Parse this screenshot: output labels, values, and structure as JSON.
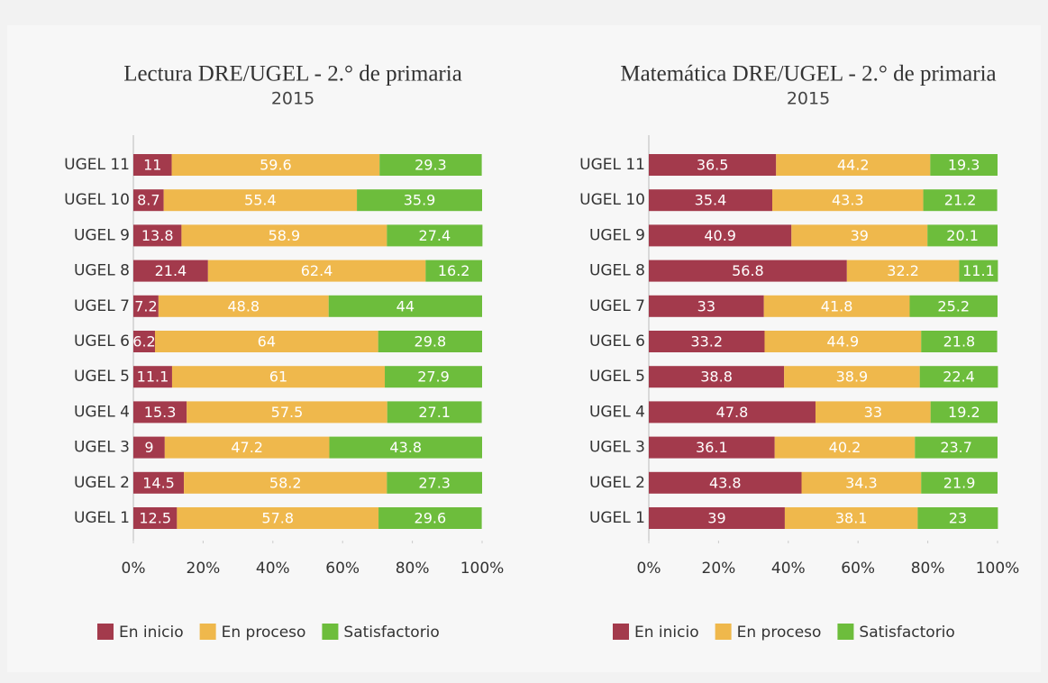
{
  "chart_data": [
    {
      "type": "stacked-barh",
      "title": "Lectura DRE/UGEL - 2.° de primaria",
      "subtitle": "2015",
      "categories": [
        "UGEL 11",
        "UGEL 10",
        "UGEL 9",
        "UGEL 8",
        "UGEL 7",
        "UGEL 6",
        "UGEL 5",
        "UGEL 4",
        "UGEL 3",
        "UGEL 2",
        "UGEL 1"
      ],
      "series": [
        {
          "name": "En inicio",
          "color": "#a33a4c",
          "values": [
            11,
            8.7,
            13.8,
            21.4,
            7.2,
            6.2,
            11.1,
            15.3,
            9,
            14.5,
            12.5
          ]
        },
        {
          "name": "En proceso",
          "color": "#efb84c",
          "values": [
            59.6,
            55.4,
            58.9,
            62.4,
            48.8,
            64,
            61,
            57.5,
            47.2,
            58.2,
            57.8
          ]
        },
        {
          "name": "Satisfactorio",
          "color": "#6dbd3c",
          "values": [
            29.3,
            35.9,
            27.4,
            16.2,
            44,
            29.8,
            27.9,
            27.1,
            43.8,
            27.3,
            29.6
          ]
        }
      ],
      "xlim": [
        0,
        100
      ],
      "xticks": [
        {
          "value": 0,
          "label": "0%"
        },
        {
          "value": 20,
          "label": "20%"
        },
        {
          "value": 40,
          "label": "40%"
        },
        {
          "value": 60,
          "label": "60%"
        },
        {
          "value": 80,
          "label": "80%"
        },
        {
          "value": 100,
          "label": "100%"
        }
      ]
    },
    {
      "type": "stacked-barh",
      "title": "Matemática DRE/UGEL - 2.° de primaria",
      "subtitle": "2015",
      "categories": [
        "UGEL 11",
        "UGEL 10",
        "UGEL 9",
        "UGEL 8",
        "UGEL 7",
        "UGEL 6",
        "UGEL 5",
        "UGEL 4",
        "UGEL 3",
        "UGEL 2",
        "UGEL 1"
      ],
      "series": [
        {
          "name": "En inicio",
          "color": "#a33a4c",
          "values": [
            36.5,
            35.4,
            40.9,
            56.8,
            33,
            33.2,
            38.8,
            47.8,
            36.1,
            43.8,
            39
          ]
        },
        {
          "name": "En proceso",
          "color": "#efb84c",
          "values": [
            44.2,
            43.3,
            39,
            32.2,
            41.8,
            44.9,
            38.9,
            33,
            40.2,
            34.3,
            38.1
          ]
        },
        {
          "name": "Satisfactorio",
          "color": "#6dbd3c",
          "values": [
            19.3,
            21.2,
            20.1,
            11.1,
            25.2,
            21.8,
            22.4,
            19.2,
            23.7,
            21.9,
            23
          ]
        }
      ],
      "xlim": [
        0,
        100
      ],
      "xticks": [
        {
          "value": 0,
          "label": "0%"
        },
        {
          "value": 20,
          "label": "20%"
        },
        {
          "value": 40,
          "label": "40%"
        },
        {
          "value": 60,
          "label": "60%"
        },
        {
          "value": 80,
          "label": "80%"
        },
        {
          "value": 100,
          "label": "100%"
        }
      ]
    }
  ]
}
